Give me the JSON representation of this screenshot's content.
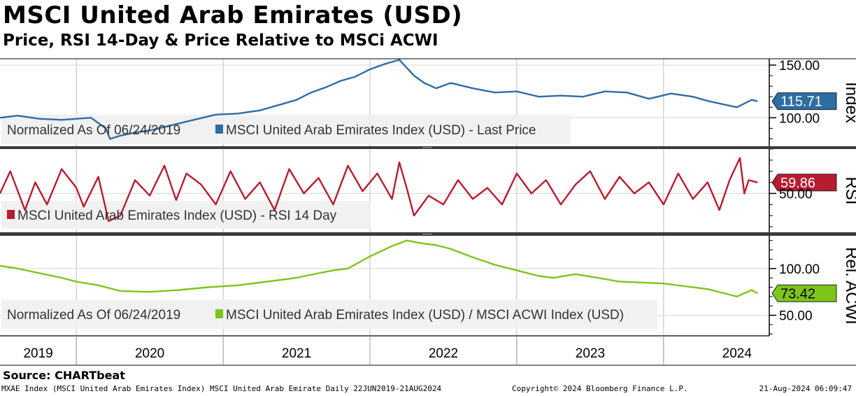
{
  "header": {
    "title": "MSCI United Arab Emirates (USD)",
    "subtitle": "Price, RSI 14-Day & Price Relative to MSCi ACWI"
  },
  "footer": {
    "source": "Source: CHARTbeat",
    "ticker_info": "MXAE Index (MSCI United Arab Emirates Index) MSCI United Arab Emirate  Daily 22JUN2019-21AUG2024",
    "copyright": "Copyright© 2024 Bloomberg Finance L.P.",
    "timestamp": "21-Aug-2024 06:09:47"
  },
  "colors": {
    "price": "#2e6da4",
    "rsi": "#b81c30",
    "relative": "#7dc51b",
    "legend_bg": "#f0f0f0"
  },
  "chart_data": [
    {
      "type": "line",
      "panel": "price",
      "axis_label": "Index",
      "legend_prefix": "Normalized As Of 06/24/2019",
      "series_name": "MSCI United Arab Emirates Index (USD) - Last Price",
      "last_value": "115.71",
      "y_ticks": [
        {
          "value": 150,
          "label": "150.00"
        },
        {
          "value": 100,
          "label": "100.00"
        }
      ],
      "ylim": [
        73,
        156
      ],
      "x": [
        2019.48,
        2019.6,
        2019.75,
        2019.9,
        2020.0,
        2020.1,
        2020.2,
        2020.23,
        2020.3,
        2020.4,
        2020.5,
        2020.65,
        2020.8,
        2020.95,
        2021.1,
        2021.25,
        2021.4,
        2021.5,
        2021.6,
        2021.7,
        2021.8,
        2021.9,
        2022.0,
        2022.1,
        2022.2,
        2022.3,
        2022.37,
        2022.45,
        2022.55,
        2022.7,
        2022.85,
        2023.0,
        2023.15,
        2023.3,
        2023.45,
        2023.6,
        2023.75,
        2023.9,
        2024.05,
        2024.2,
        2024.3,
        2024.4,
        2024.5,
        2024.6,
        2024.64
      ],
      "y": [
        100,
        102,
        99,
        98,
        99,
        100,
        90,
        80,
        83,
        86,
        88,
        93,
        98,
        103,
        104,
        107,
        113,
        117,
        124,
        129,
        135,
        139,
        146,
        151,
        155,
        140,
        133,
        128,
        133,
        128,
        124,
        125,
        120,
        121,
        120,
        125,
        124,
        118,
        123,
        120,
        116,
        113,
        110,
        117,
        115.71
      ]
    },
    {
      "type": "line",
      "panel": "rsi",
      "axis_label": "RSI",
      "series_name": "MSCI United Arab Emirates Index (USD) - RSI 14 Day",
      "last_value": "59.86",
      "y_ticks": [
        {
          "value": 50,
          "label": "50.00"
        }
      ],
      "ylim": [
        15,
        90
      ],
      "x": [
        2019.48,
        2019.55,
        2019.65,
        2019.72,
        2019.8,
        2019.9,
        2020.0,
        2020.05,
        2020.15,
        2020.22,
        2020.3,
        2020.4,
        2020.5,
        2020.6,
        2020.68,
        2020.75,
        2020.85,
        2020.95,
        2021.05,
        2021.15,
        2021.25,
        2021.35,
        2021.45,
        2021.55,
        2021.65,
        2021.75,
        2021.85,
        2021.95,
        2022.05,
        2022.15,
        2022.2,
        2022.25,
        2022.3,
        2022.4,
        2022.5,
        2022.6,
        2022.7,
        2022.8,
        2022.9,
        2023.0,
        2023.1,
        2023.2,
        2023.3,
        2023.4,
        2023.5,
        2023.6,
        2023.7,
        2023.8,
        2023.9,
        2024.0,
        2024.1,
        2024.2,
        2024.3,
        2024.38,
        2024.45,
        2024.52,
        2024.55,
        2024.58,
        2024.64
      ],
      "y": [
        50,
        70,
        35,
        60,
        40,
        72,
        55,
        38,
        65,
        25,
        30,
        62,
        48,
        75,
        44,
        68,
        58,
        40,
        70,
        45,
        60,
        35,
        72,
        50,
        64,
        40,
        75,
        52,
        68,
        45,
        78,
        55,
        30,
        48,
        40,
        62,
        45,
        55,
        40,
        68,
        50,
        62,
        40,
        58,
        70,
        45,
        65,
        50,
        60,
        40,
        68,
        45,
        60,
        35,
        62,
        82,
        50,
        62,
        59.86
      ]
    },
    {
      "type": "line",
      "panel": "relative",
      "axis_label": "Rel. ACWI",
      "legend_prefix": "Normalized As Of 06/24/2019",
      "series_name": "MSCI United Arab Emirates Index (USD) / MSCI ACWI Index (USD)",
      "last_value": "73.42",
      "y_ticks": [
        {
          "value": 100,
          "label": "100.00"
        },
        {
          "value": 50,
          "label": "50.00"
        }
      ],
      "ylim": [
        28,
        135
      ],
      "x": [
        2019.48,
        2019.6,
        2019.75,
        2019.9,
        2020.0,
        2020.15,
        2020.3,
        2020.5,
        2020.7,
        2020.9,
        2021.1,
        2021.3,
        2021.5,
        2021.65,
        2021.75,
        2021.85,
        2022.0,
        2022.15,
        2022.25,
        2022.35,
        2022.45,
        2022.55,
        2022.7,
        2022.85,
        2023.0,
        2023.15,
        2023.25,
        2023.4,
        2023.55,
        2023.7,
        2023.85,
        2024.0,
        2024.15,
        2024.3,
        2024.4,
        2024.5,
        2024.6,
        2024.64
      ],
      "y": [
        103,
        100,
        95,
        90,
        86,
        82,
        76,
        75,
        77,
        80,
        82,
        86,
        90,
        95,
        98,
        100,
        113,
        124,
        130,
        127,
        125,
        121,
        112,
        104,
        98,
        92,
        90,
        94,
        90,
        86,
        85,
        84,
        81,
        78,
        74,
        70,
        77,
        73.42
      ]
    }
  ],
  "x_axis": {
    "ticks": [
      {
        "value": 2019.0,
        "label": ""
      },
      {
        "value": 2020.0,
        "label": ""
      },
      {
        "value": 2021.0,
        "label": ""
      },
      {
        "value": 2022.0,
        "label": ""
      },
      {
        "value": 2023.0,
        "label": ""
      },
      {
        "value": 2024.0,
        "label": ""
      }
    ],
    "labels": [
      {
        "value": 2019.74,
        "label": "2019"
      },
      {
        "value": 2020.5,
        "label": "2020"
      },
      {
        "value": 2021.5,
        "label": "2021"
      },
      {
        "value": 2022.5,
        "label": "2022"
      },
      {
        "value": 2023.5,
        "label": "2023"
      },
      {
        "value": 2024.5,
        "label": "2024"
      }
    ],
    "xlim": [
      2019.48,
      2024.72
    ]
  }
}
